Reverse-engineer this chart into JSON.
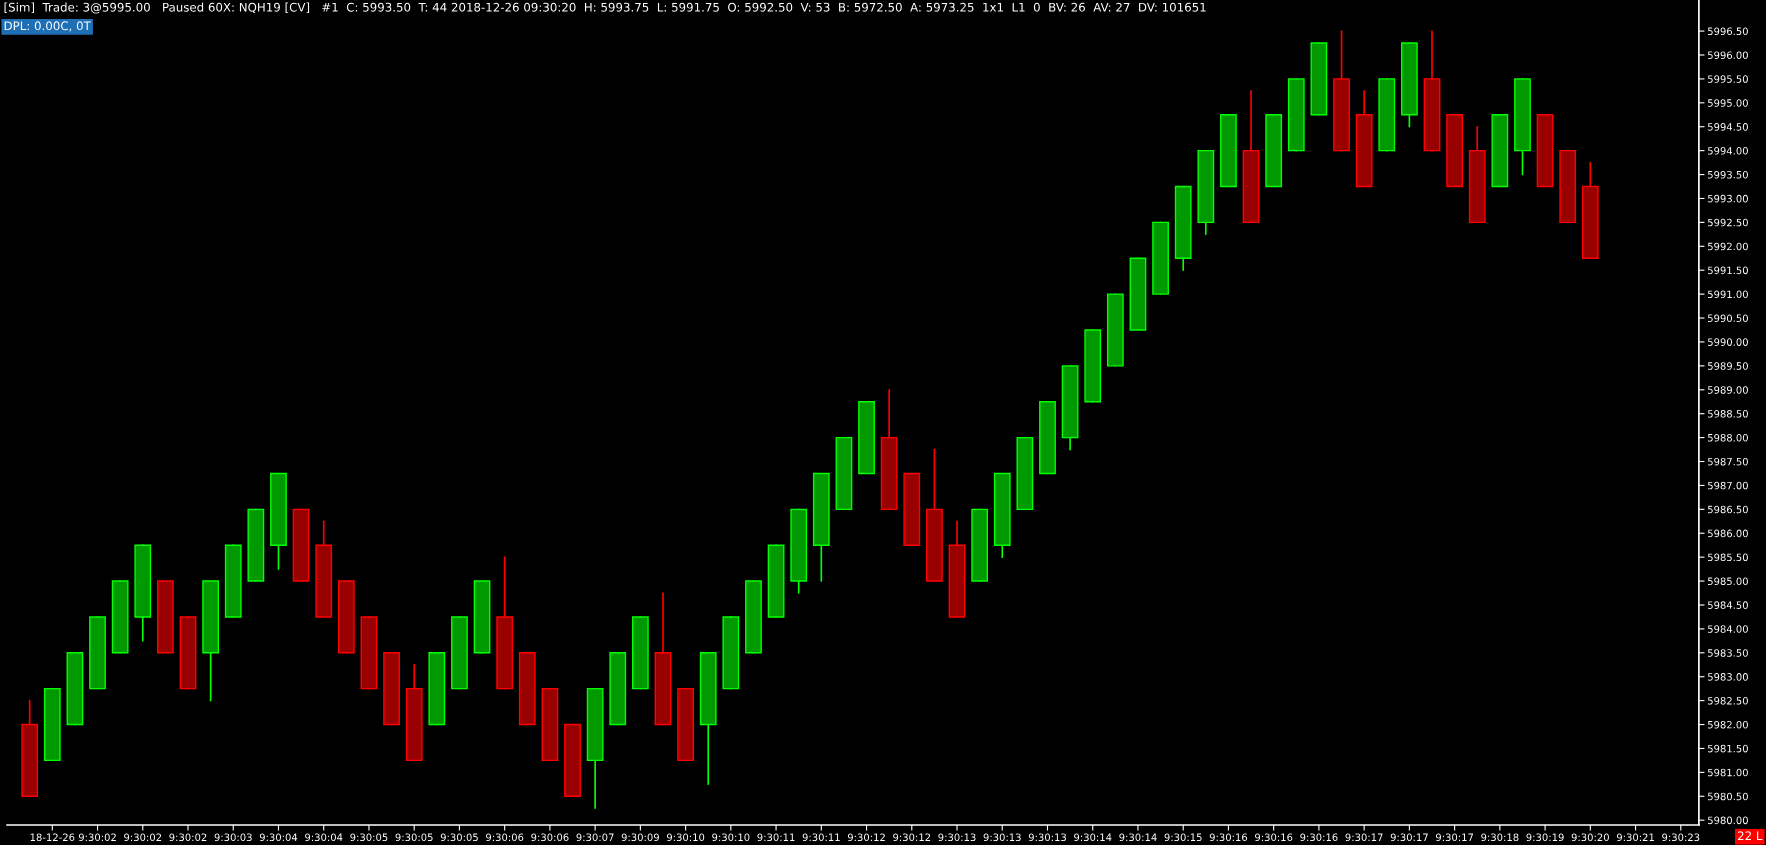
{
  "chart_data": {
    "type": "candlestick",
    "categories": [
      null,
      "18-12-26",
      null,
      "9:30:02",
      null,
      "9:30:02",
      null,
      "9:30:02",
      null,
      "9:30:03",
      null,
      "9:30:04",
      null,
      "9:30:04",
      null,
      "9:30:05",
      null,
      "9:30:05",
      null,
      "9:30:05",
      null,
      "9:30:06",
      null,
      "9:30:06",
      null,
      "9:30:07",
      null,
      "9:30:09",
      null,
      "9:30:10",
      null,
      "9:30:10",
      null,
      "9:30:11",
      null,
      "9:30:11",
      null,
      "9:30:12",
      null,
      "9:30:12",
      null,
      "9:30:13",
      null,
      "9:30:13",
      null,
      "9:30:13",
      null,
      "9:30:14",
      null,
      "9:30:14",
      null,
      "9:30:15",
      null,
      "9:30:16",
      null,
      "9:30:16",
      null,
      "9:30:16",
      null,
      "9:30:17",
      null,
      "9:30:17",
      null,
      "9:30:17",
      null,
      "9:30:18",
      null,
      "9:30:19",
      null,
      "9:30:20",
      null,
      "9:30:21",
      null,
      "9:30:23",
      null
    ],
    "ohlc": [
      [
        5982.0,
        5982.5,
        5980.5,
        5980.5
      ],
      [
        5981.25,
        5982.75,
        5981.25,
        5982.75
      ],
      [
        5982.0,
        5983.5,
        5982.0,
        5983.5
      ],
      [
        5982.75,
        5984.25,
        5982.75,
        5984.25
      ],
      [
        5983.5,
        5985.0,
        5983.5,
        5985.0
      ],
      [
        5984.25,
        5985.75,
        5983.75,
        5985.75
      ],
      [
        5985.0,
        5985.0,
        5983.5,
        5983.5
      ],
      [
        5984.25,
        5984.25,
        5982.75,
        5982.75
      ],
      [
        5983.5,
        5985.0,
        5982.5,
        5985.0
      ],
      [
        5984.25,
        5985.75,
        5984.25,
        5985.75
      ],
      [
        5985.0,
        5986.5,
        5985.0,
        5986.5
      ],
      [
        5985.75,
        5987.25,
        5985.25,
        5987.25
      ],
      [
        5986.5,
        5986.5,
        5985.0,
        5985.0
      ],
      [
        5985.75,
        5986.25,
        5984.25,
        5984.25
      ],
      [
        5985.0,
        5985.0,
        5983.5,
        5983.5
      ],
      [
        5984.25,
        5984.25,
        5982.75,
        5982.75
      ],
      [
        5983.5,
        5983.5,
        5982.0,
        5982.0
      ],
      [
        5982.75,
        5983.25,
        5981.25,
        5981.25
      ],
      [
        5982.0,
        5983.5,
        5982.0,
        5983.5
      ],
      [
        5982.75,
        5984.25,
        5982.75,
        5984.25
      ],
      [
        5983.5,
        5985.0,
        5983.5,
        5985.0
      ],
      [
        5984.25,
        5985.5,
        5982.75,
        5982.75
      ],
      [
        5983.5,
        5983.5,
        5982.0,
        5982.0
      ],
      [
        5982.75,
        5982.75,
        5981.25,
        5981.25
      ],
      [
        5982.0,
        5982.0,
        5980.5,
        5980.5
      ],
      [
        5981.25,
        5982.75,
        5980.25,
        5982.75
      ],
      [
        5982.0,
        5983.5,
        5982.0,
        5983.5
      ],
      [
        5982.75,
        5984.25,
        5982.75,
        5984.25
      ],
      [
        5983.5,
        5984.75,
        5982.0,
        5982.0
      ],
      [
        5982.75,
        5982.75,
        5981.25,
        5981.25
      ],
      [
        5982.0,
        5983.5,
        5980.75,
        5983.5
      ],
      [
        5982.75,
        5984.25,
        5982.75,
        5984.25
      ],
      [
        5983.5,
        5985.0,
        5983.5,
        5985.0
      ],
      [
        5984.25,
        5985.75,
        5984.25,
        5985.75
      ],
      [
        5985.0,
        5986.5,
        5984.75,
        5986.5
      ],
      [
        5985.75,
        5987.25,
        5985.0,
        5987.25
      ],
      [
        5986.5,
        5988.0,
        5986.5,
        5988.0
      ],
      [
        5987.25,
        5988.75,
        5987.25,
        5988.75
      ],
      [
        5988.0,
        5989.0,
        5986.5,
        5986.5
      ],
      [
        5987.25,
        5987.25,
        5985.75,
        5985.75
      ],
      [
        5986.5,
        5987.75,
        5985.0,
        5985.0
      ],
      [
        5985.75,
        5986.25,
        5984.25,
        5984.25
      ],
      [
        5985.0,
        5986.5,
        5985.0,
        5986.5
      ],
      [
        5985.75,
        5987.25,
        5985.5,
        5987.25
      ],
      [
        5986.5,
        5988.0,
        5986.5,
        5988.0
      ],
      [
        5987.25,
        5988.75,
        5987.25,
        5988.75
      ],
      [
        5988.0,
        5989.5,
        5987.75,
        5989.5
      ],
      [
        5988.75,
        5990.25,
        5988.75,
        5990.25
      ],
      [
        5989.5,
        5991.0,
        5989.5,
        5991.0
      ],
      [
        5990.25,
        5991.75,
        5990.25,
        5991.75
      ],
      [
        5991.0,
        5992.5,
        5991.0,
        5992.5
      ],
      [
        5991.75,
        5993.25,
        5991.5,
        5993.25
      ],
      [
        5992.5,
        5994.0,
        5992.25,
        5994.0
      ],
      [
        5993.25,
        5994.75,
        5993.25,
        5994.75
      ],
      [
        5994.0,
        5995.25,
        5992.5,
        5992.5
      ],
      [
        5993.25,
        5994.75,
        5993.25,
        5994.75
      ],
      [
        5994.0,
        5995.5,
        5994.0,
        5995.5
      ],
      [
        5994.75,
        5996.25,
        5994.75,
        5996.25
      ],
      [
        5995.5,
        5996.5,
        5994.0,
        5994.0
      ],
      [
        5994.75,
        5995.25,
        5993.25,
        5993.25
      ],
      [
        5994.0,
        5995.5,
        5994.0,
        5995.5
      ],
      [
        5994.75,
        5996.25,
        5994.5,
        5996.25
      ],
      [
        5995.5,
        5996.5,
        5994.0,
        5994.0
      ],
      [
        5994.75,
        5994.75,
        5993.25,
        5993.25
      ],
      [
        5994.0,
        5994.5,
        5992.5,
        5992.5
      ],
      [
        5993.25,
        5994.75,
        5993.25,
        5994.75
      ],
      [
        5994.0,
        5995.5,
        5993.5,
        5995.5
      ],
      [
        5994.75,
        5994.75,
        5993.25,
        5993.25
      ],
      [
        5994.0,
        5994.0,
        5992.5,
        5992.5
      ],
      [
        5993.25,
        5993.75,
        5991.75,
        5991.75
      ],
      null,
      null,
      null,
      null,
      null
    ],
    "colors": [
      "#990000",
      "#009a00",
      "#009a00",
      "#009a00",
      "#009a00",
      "#009a00",
      "#990000",
      "#990000",
      "#009a00",
      "#009a00",
      "#009a00",
      "#009a00",
      "#990000",
      "#990000",
      "#990000",
      "#990000",
      "#990000",
      "#990000",
      "#009a00",
      "#009a00",
      "#009a00",
      "#990000",
      "#990000",
      "#990000",
      "#990000",
      "#009a00",
      "#009a00",
      "#009a00",
      "#990000",
      "#990000",
      "#009a00",
      "#009a00",
      "#009a00",
      "#009a00",
      "#009a00",
      "#009a00",
      "#009a00",
      "#009a00",
      "#990000",
      "#990000",
      "#990000",
      "#990000",
      "#009a00",
      "#009a00",
      "#009a00",
      "#009a00",
      "#009a00",
      "#009a00",
      "#009a00",
      "#009a00",
      "#009a00",
      "#009a00",
      "#009a00",
      "#009a00",
      "#990000",
      "#009a00",
      "#009a00",
      "#009a00",
      "#990000",
      "#990000",
      "#009a00",
      "#009a00",
      "#990000",
      "#990000",
      "#990000",
      "#009a00",
      "#009a00",
      "#990000",
      "#990000",
      "#990000",
      null,
      null,
      null,
      null,
      null
    ],
    "ylim": [
      5979.9,
      5997.15
    ],
    "yticks": [
      {
        "value": 5980.0,
        "label": "5980.00"
      },
      {
        "value": 5980.5,
        "label": "5980.50"
      },
      {
        "value": 5981.0,
        "label": "5981.00"
      },
      {
        "value": 5981.5,
        "label": "5981.50"
      },
      {
        "value": 5982.0,
        "label": "5982.00"
      },
      {
        "value": 5982.5,
        "label": "5982.50"
      },
      {
        "value": 5983.0,
        "label": "5983.00"
      },
      {
        "value": 5983.5,
        "label": "5983.50"
      },
      {
        "value": 5984.0,
        "label": "5984.00"
      },
      {
        "value": 5984.5,
        "label": "5984.50"
      },
      {
        "value": 5985.0,
        "label": "5985.00"
      },
      {
        "value": 5985.5,
        "label": "5985.50"
      },
      {
        "value": 5986.0,
        "label": "5986.00"
      },
      {
        "value": 5986.5,
        "label": "5986.50"
      },
      {
        "value": 5987.0,
        "label": "5987.00"
      },
      {
        "value": 5987.5,
        "label": "5987.50"
      },
      {
        "value": 5988.0,
        "label": "5988.00"
      },
      {
        "value": 5988.5,
        "label": "5988.50"
      },
      {
        "value": 5989.0,
        "label": "5989.00"
      },
      {
        "value": 5989.5,
        "label": "5989.50"
      },
      {
        "value": 5990.0,
        "label": "5990.00"
      },
      {
        "value": 5990.5,
        "label": "5990.50"
      },
      {
        "value": 5991.0,
        "label": "5991.00"
      },
      {
        "value": 5991.5,
        "label": "5991.50"
      },
      {
        "value": 5992.0,
        "label": "5992.00"
      },
      {
        "value": 5992.5,
        "label": "5992.50"
      },
      {
        "value": 5993.0,
        "label": "5993.00"
      },
      {
        "value": 5993.5,
        "label": "5993.50"
      },
      {
        "value": 5994.0,
        "label": "5994.00"
      },
      {
        "value": 5994.5,
        "label": "5994.50"
      },
      {
        "value": 5995.0,
        "label": "5995.00"
      },
      {
        "value": 5995.5,
        "label": "5995.50"
      },
      {
        "value": 5996.0,
        "label": "5996.00"
      },
      {
        "value": 5996.5,
        "label": "5996.50"
      }
    ],
    "annotations": [
      "[Sim]  Trade: 3@5995.00   Paused 60X: NQH19 [CV]   #1  C: 5993.50  T: 44 2018-12-26 09:30:20  H: 5993.75  L: 5991.75  O: 5992.50  V: 53  B: 5972.50  A: 5973.25  1x1  L1  0  BV: 26  AV: 27  DV: 101651",
      "DPL: 0.00C, 0T",
      "22 L"
    ]
  }
}
